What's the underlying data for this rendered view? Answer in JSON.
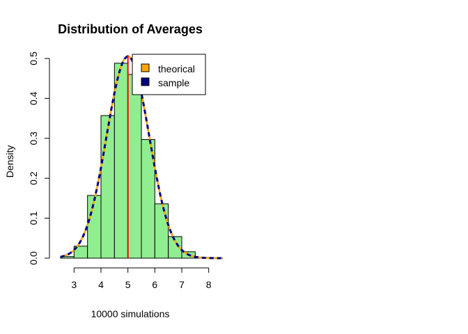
{
  "chart_data": {
    "type": "histogram",
    "title": "Distribution of Averages",
    "xlabel": "10000 simulations",
    "ylabel": "Density",
    "xlim": [
      2.5,
      8.5
    ],
    "ylim": [
      0,
      0.5
    ],
    "x_ticks": [
      3,
      4,
      5,
      6,
      7,
      8
    ],
    "y_ticks": [
      0.0,
      0.1,
      0.2,
      0.3,
      0.4,
      0.5
    ],
    "x_tick_labels": [
      "3",
      "4",
      "5",
      "6",
      "7",
      "8"
    ],
    "y_tick_labels": [
      "0.0",
      "0.1",
      "0.2",
      "0.3",
      "0.4",
      "0.5"
    ],
    "bin_edges": [
      2.5,
      3.0,
      3.5,
      4.0,
      4.5,
      5.0,
      5.5,
      6.0,
      6.5,
      7.0,
      7.5,
      8.0,
      8.5
    ],
    "densities": [
      0.004,
      0.03,
      0.157,
      0.357,
      0.488,
      0.46,
      0.297,
      0.136,
      0.054,
      0.016,
      0.002,
      0.001
    ],
    "bar_color": "#90EE90",
    "mean_line": {
      "x": 5,
      "color": "#FF0000"
    },
    "theoretical_curve": {
      "mean": 5,
      "sd": 0.79,
      "color": "#FFA500"
    },
    "sample_curve": {
      "mean": 5.0,
      "sd": 0.79,
      "color": "#000080"
    },
    "legend": {
      "position": "top-right",
      "items": [
        {
          "label": "theorical",
          "color": "#FFA500"
        },
        {
          "label": "sample",
          "color": "#000080"
        }
      ]
    },
    "grid": false
  }
}
